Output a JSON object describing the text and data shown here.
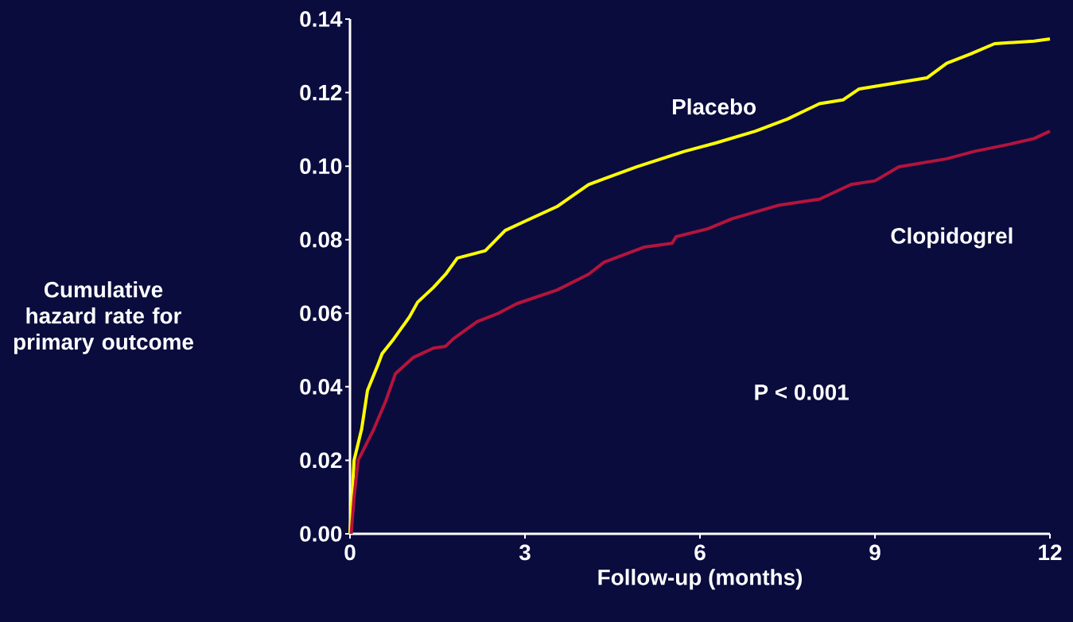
{
  "chart_data": {
    "type": "line",
    "xlabel": "Follow-up (months)",
    "ylabel": "Cumulative hazard rate for primary outcome",
    "xlim": [
      0,
      12
    ],
    "ylim": [
      0,
      0.14
    ],
    "xticks": [
      0,
      3,
      6,
      9,
      12
    ],
    "yticks": [
      {
        "value": 0,
        "label": "0.00"
      },
      0.02,
      0.04,
      0.06,
      0.08,
      {
        "value": 0.1,
        "label": "0.10"
      },
      0.12,
      0.14
    ],
    "annotations": [
      "P < 0.001"
    ],
    "series": [
      {
        "name": "Placebo",
        "color": "#ffff00",
        "x": [
          0,
          0.07,
          0.2,
          0.3,
          0.48,
          0.55,
          0.75,
          1.02,
          1.16,
          1.43,
          1.64,
          1.84,
          2.32,
          2.66,
          3.0,
          3.55,
          4.09,
          4.91,
          5.73,
          6.27,
          6.95,
          7.5,
          8.05,
          8.45,
          8.73,
          9.89,
          10.23,
          10.64,
          11.05,
          11.73,
          12
        ],
        "values": [
          0,
          0.02,
          0.0285,
          0.039,
          0.046,
          0.049,
          0.053,
          0.059,
          0.063,
          0.067,
          0.0706,
          0.075,
          0.077,
          0.0825,
          0.085,
          0.089,
          0.095,
          0.0998,
          0.104,
          0.1063,
          0.1095,
          0.1128,
          0.117,
          0.118,
          0.121,
          0.124,
          0.128,
          0.1305,
          0.1333,
          0.134,
          0.1346
        ]
      },
      {
        "name": "Clopidogrel",
        "color": "#b4143c",
        "x": [
          0.02,
          0.07,
          0.14,
          0.41,
          0.61,
          0.78,
          1.09,
          1.43,
          1.64,
          1.77,
          2.18,
          2.52,
          2.86,
          3.55,
          4.09,
          4.36,
          5.05,
          5.52,
          5.59,
          6.14,
          6.55,
          7.36,
          8.05,
          8.59,
          9.0,
          9.41,
          10.23,
          10.7,
          11.32,
          11.73,
          12
        ],
        "values": [
          0,
          0.01,
          0.02,
          0.0285,
          0.036,
          0.0436,
          0.048,
          0.0505,
          0.051,
          0.053,
          0.0577,
          0.0598,
          0.0626,
          0.0663,
          0.0706,
          0.0739,
          0.078,
          0.079,
          0.0808,
          0.083,
          0.0857,
          0.0894,
          0.091,
          0.095,
          0.096,
          0.0998,
          0.102,
          0.104,
          0.106,
          0.1075,
          0.1095
        ]
      }
    ]
  }
}
